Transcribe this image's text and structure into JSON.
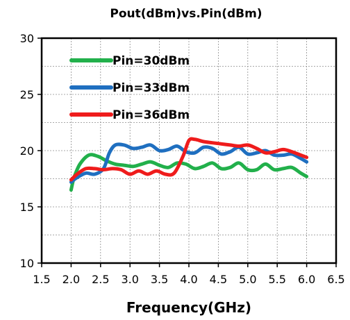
{
  "chart_data": {
    "type": "line",
    "title": "Pout(dBm)vs.Pin(dBm)",
    "xlabel": "Frequency(GHz)",
    "ylabel": "",
    "xlim": [
      1.5,
      6.5
    ],
    "ylim": [
      10,
      30
    ],
    "xticks": [
      "1.5",
      "2.0",
      "2.5",
      "3.0",
      "3.5",
      "4.0",
      "4.5",
      "5.0",
      "5.5",
      "6.0",
      "6.5"
    ],
    "yticks": [
      "10",
      "15",
      "20",
      "25",
      "30"
    ],
    "grid": true,
    "legend_placement": "top-left",
    "series": [
      {
        "name": "Pin=30dBm",
        "color": "#22b04b",
        "x": [
          2.0,
          2.05,
          2.15,
          2.3,
          2.45,
          2.6,
          2.75,
          2.9,
          3.05,
          3.2,
          3.35,
          3.5,
          3.65,
          3.8,
          3.95,
          4.1,
          4.25,
          4.4,
          4.55,
          4.7,
          4.85,
          5.0,
          5.15,
          5.3,
          5.45,
          5.6,
          5.75,
          5.9,
          6.0
        ],
        "y": [
          16.5,
          17.6,
          18.8,
          19.6,
          19.5,
          19.1,
          18.8,
          18.7,
          18.6,
          18.8,
          19.0,
          18.7,
          18.5,
          18.9,
          18.8,
          18.4,
          18.6,
          18.9,
          18.4,
          18.5,
          18.9,
          18.3,
          18.3,
          18.8,
          18.3,
          18.4,
          18.5,
          18.0,
          17.7
        ]
      },
      {
        "name": "Pin=33dBm",
        "color": "#1f6fc0",
        "x": [
          2.0,
          2.1,
          2.25,
          2.4,
          2.55,
          2.65,
          2.75,
          2.9,
          3.05,
          3.2,
          3.35,
          3.5,
          3.65,
          3.8,
          3.95,
          4.1,
          4.25,
          4.4,
          4.55,
          4.7,
          4.85,
          5.0,
          5.15,
          5.3,
          5.45,
          5.6,
          5.75,
          5.9,
          6.0
        ],
        "y": [
          17.2,
          17.6,
          18.0,
          17.9,
          18.4,
          19.8,
          20.5,
          20.5,
          20.2,
          20.3,
          20.5,
          20.0,
          20.1,
          20.4,
          19.9,
          19.8,
          20.3,
          20.2,
          19.7,
          19.9,
          20.3,
          19.7,
          19.8,
          20.0,
          19.6,
          19.6,
          19.7,
          19.3,
          19.0
        ]
      },
      {
        "name": "Pin=36dBm",
        "color": "#ef1c1c",
        "x": [
          2.0,
          2.1,
          2.25,
          2.4,
          2.55,
          2.7,
          2.85,
          3.0,
          3.15,
          3.3,
          3.45,
          3.6,
          3.75,
          3.9,
          4.0,
          4.1,
          4.25,
          4.4,
          4.55,
          4.7,
          4.85,
          5.0,
          5.15,
          5.3,
          5.45,
          5.6,
          5.75,
          5.9,
          6.0
        ],
        "y": [
          17.4,
          17.9,
          18.4,
          18.4,
          18.3,
          18.4,
          18.3,
          17.9,
          18.2,
          17.9,
          18.2,
          17.9,
          18.0,
          19.5,
          20.9,
          21.0,
          20.8,
          20.7,
          20.6,
          20.5,
          20.4,
          20.5,
          20.2,
          19.8,
          19.9,
          20.1,
          19.9,
          19.6,
          19.4
        ]
      }
    ]
  }
}
